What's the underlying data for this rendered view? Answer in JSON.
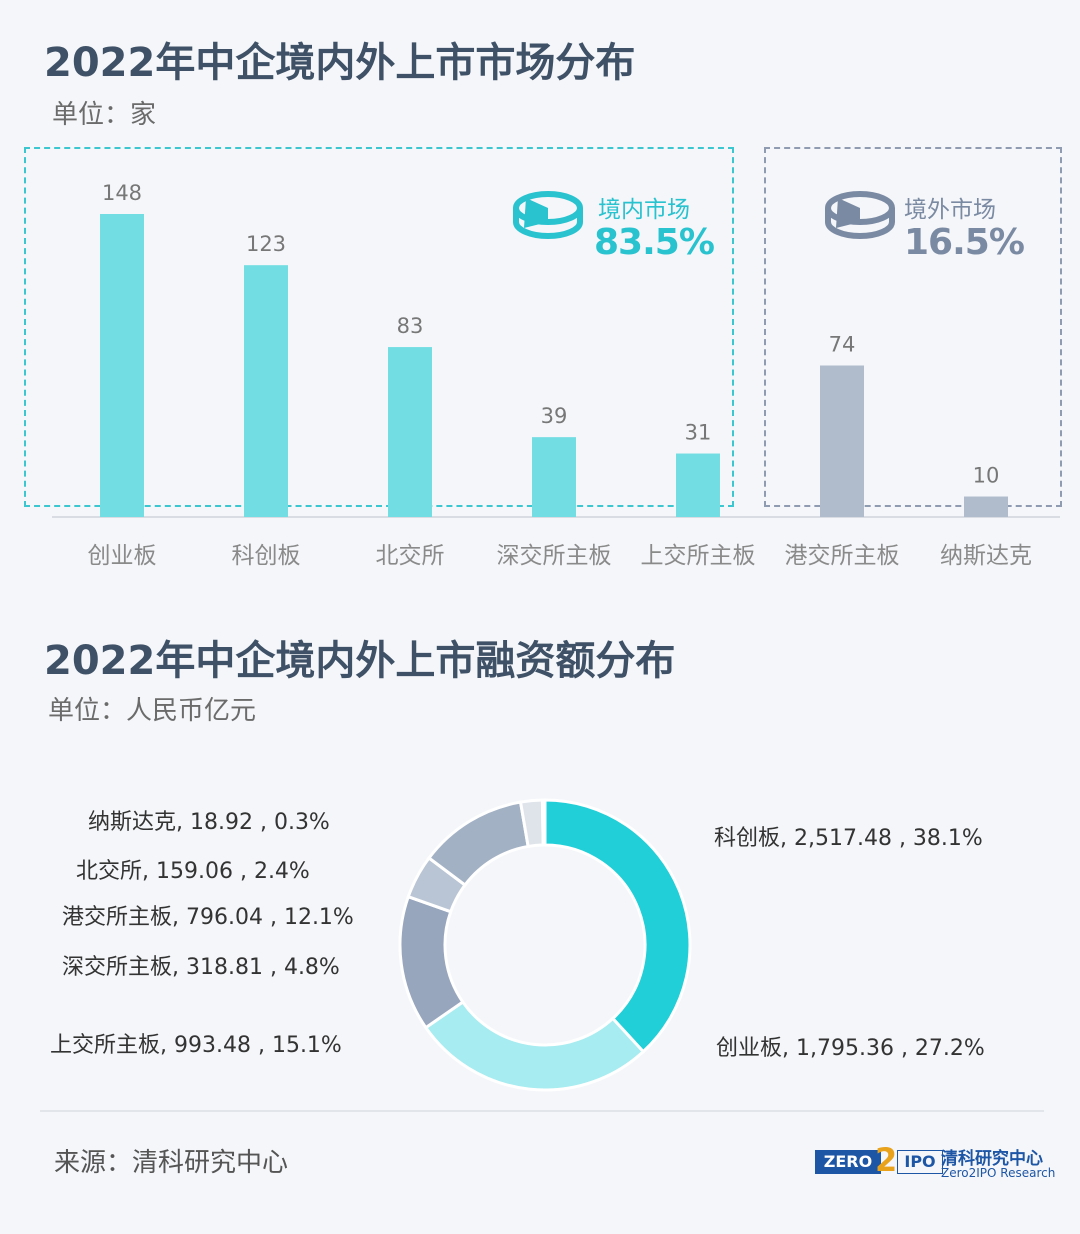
{
  "section1": {
    "title": "2022年中企境内外上市市场分布",
    "unit": "单位：家"
  },
  "section2": {
    "title": "2022年中企境内外上市融资额分布",
    "unit": "单位：人民币亿元"
  },
  "domestic": {
    "label": "境内市场",
    "pct": "83.5%",
    "color": "#29c2cf",
    "icon": "pie-chart-icon"
  },
  "overseas": {
    "label": "境外市场",
    "pct": "16.5%",
    "color": "#7b8aa3",
    "icon": "pie-chart-icon"
  },
  "colors": {
    "bar_domestic": "#72dde2",
    "bar_overseas": "#b0bccb"
  },
  "source": "来源：清科研究中心",
  "logo": {
    "zero": "ZERO",
    "two": "2",
    "ipo": "IPO",
    "cn": "清科研究中心",
    "en": "Zero2IPO Research"
  },
  "chart_data": [
    {
      "type": "bar",
      "categories": [
        "创业板",
        "科创板",
        "北交所",
        "深交所主板",
        "上交所主板",
        "港交所主板",
        "纳斯达克"
      ],
      "values": [
        148,
        123,
        83,
        39,
        31,
        74,
        10
      ],
      "groups": [
        "domestic",
        "domestic",
        "domestic",
        "domestic",
        "domestic",
        "overseas",
        "overseas"
      ],
      "ylim": [
        0,
        160
      ],
      "grid": false
    },
    {
      "type": "pie",
      "donut": true,
      "slices": [
        {
          "name": "科创板",
          "value": 2517.48,
          "pct": "38.1%",
          "label": "科创板, 2,517.48 , 38.1%",
          "color": "#21cfd8"
        },
        {
          "name": "创业板",
          "value": 1795.36,
          "pct": "27.2%",
          "label": "创业板, 1,795.36 , 27.2%",
          "color": "#a6ecf0"
        },
        {
          "name": "上交所主板",
          "value": 993.48,
          "pct": "15.1%",
          "label": "上交所主板, 993.48 , 15.1%",
          "color": "#97a5bd"
        },
        {
          "name": "深交所主板",
          "value": 318.81,
          "pct": "4.8%",
          "label": "深交所主板, 318.81 , 4.8%",
          "color": "#b9c5d4"
        },
        {
          "name": "港交所主板",
          "value": 796.04,
          "pct": "12.1%",
          "label": "港交所主板, 796.04 , 12.1%",
          "color": "#a3b1c5"
        },
        {
          "name": "北交所",
          "value": 159.06,
          "pct": "2.4%",
          "label": "北交所, 159.06 , 2.4%",
          "color": "#dfe4eb"
        },
        {
          "name": "纳斯达克",
          "value": 18.92,
          "pct": "0.3%",
          "label": "纳斯达克, 18.92 , 0.3%",
          "color": "#eef1f5"
        }
      ]
    }
  ]
}
